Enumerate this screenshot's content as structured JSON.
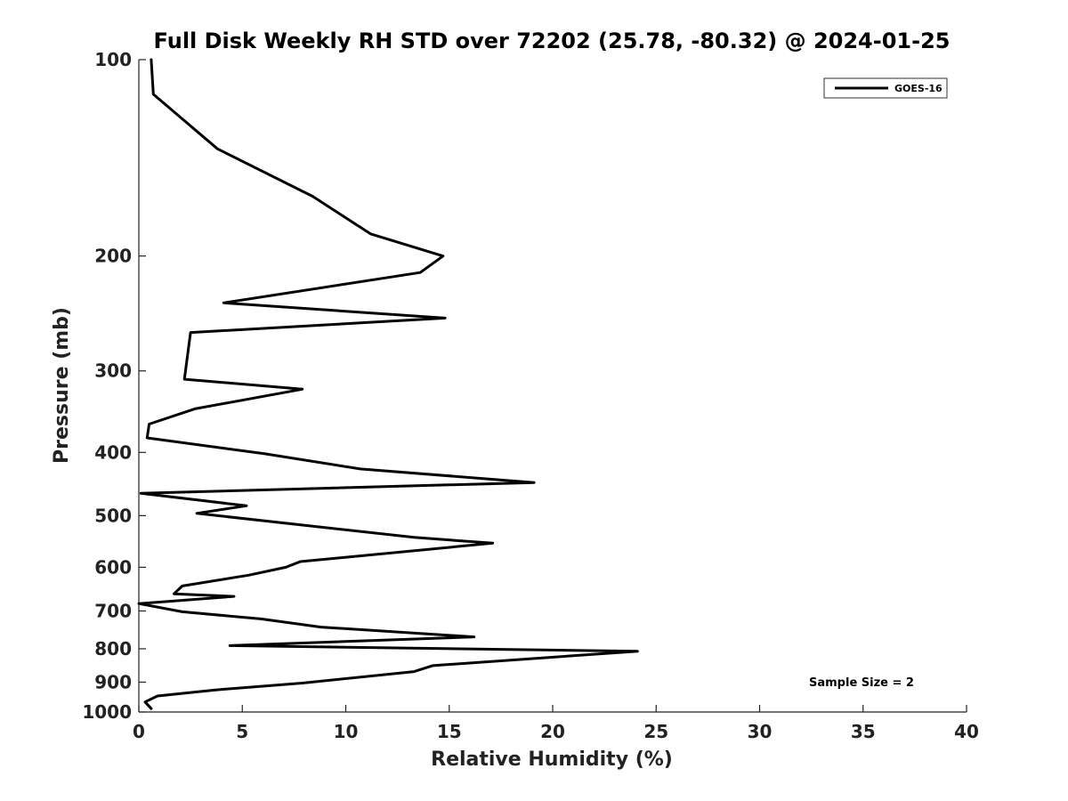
{
  "chart_data": {
    "type": "line",
    "title": "Full Disk Weekly RH STD over 72202 (25.78, -80.32) @ 2024-01-25",
    "xlabel": "Relative Humidity (%)",
    "ylabel": "Pressure (mb)",
    "xlim": [
      0,
      40
    ],
    "ylim": [
      100,
      1000
    ],
    "yscale": "log",
    "reverse_y": true,
    "xticks": [
      0,
      5,
      10,
      15,
      20,
      25,
      30,
      35,
      40
    ],
    "yticks": [
      100,
      200,
      300,
      400,
      500,
      600,
      700,
      800,
      900,
      1000
    ],
    "grid": false,
    "legend_position": "top-right",
    "annotation": "Sample Size = 2",
    "series": [
      {
        "name": "GOES-16",
        "color": "#000000",
        "x": [
          0.6,
          0.7,
          3.8,
          8.4,
          11.2,
          14.7,
          13.6,
          4.1,
          14.8,
          2.5,
          2.2,
          7.9,
          2.7,
          0.5,
          0.4,
          6.1,
          10.7,
          19.1,
          0.1,
          5.2,
          2.8,
          13.3,
          17.1,
          7.8,
          7.1,
          5.3,
          2.1,
          1.7,
          4.6,
          0.0,
          2.1,
          5.9,
          8.8,
          16.2,
          4.4,
          24.1,
          14.2,
          13.3,
          7.9,
          3.7,
          0.9,
          0.3,
          0.6
        ],
        "y": [
          100,
          113,
          137,
          162,
          185,
          200,
          212,
          236,
          249,
          262,
          309,
          320,
          343,
          362,
          380,
          402,
          424,
          445,
          462,
          483,
          496,
          540,
          551,
          588,
          600,
          617,
          641,
          659,
          665,
          682,
          702,
          720,
          741,
          767,
          791,
          807,
          849,
          867,
          903,
          925,
          945,
          965,
          988
        ]
      }
    ]
  }
}
